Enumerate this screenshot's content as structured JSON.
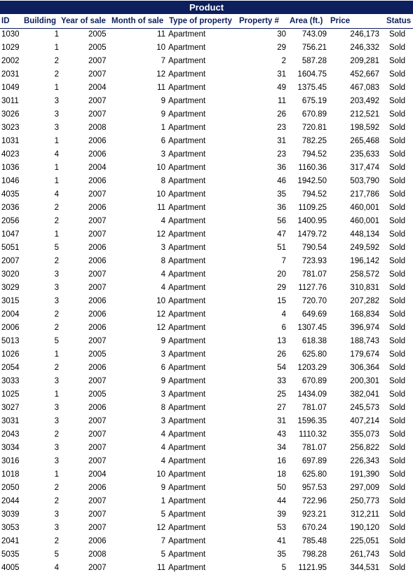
{
  "title": "Product",
  "headers": {
    "id": "ID",
    "building": "Building",
    "year": "Year of sale",
    "month": "Month of sale",
    "type": "Type of property",
    "property": "Property #",
    "area": "Area (ft.)",
    "price": "Price",
    "status": "Status"
  },
  "rows": [
    [
      "1030",
      "1",
      "2005",
      "11",
      "Apartment",
      "30",
      "743.09",
      "246,173",
      "Sold"
    ],
    [
      "1029",
      "1",
      "2005",
      "10",
      "Apartment",
      "29",
      "756.21",
      "246,332",
      "Sold"
    ],
    [
      "2002",
      "2",
      "2007",
      "7",
      "Apartment",
      "2",
      "587.28",
      "209,281",
      "Sold"
    ],
    [
      "2031",
      "2",
      "2007",
      "12",
      "Apartment",
      "31",
      "1604.75",
      "452,667",
      "Sold"
    ],
    [
      "1049",
      "1",
      "2004",
      "11",
      "Apartment",
      "49",
      "1375.45",
      "467,083",
      "Sold"
    ],
    [
      "3011",
      "3",
      "2007",
      "9",
      "Apartment",
      "11",
      "675.19",
      "203,492",
      "Sold"
    ],
    [
      "3026",
      "3",
      "2007",
      "9",
      "Apartment",
      "26",
      "670.89",
      "212,521",
      "Sold"
    ],
    [
      "3023",
      "3",
      "2008",
      "1",
      "Apartment",
      "23",
      "720.81",
      "198,592",
      "Sold"
    ],
    [
      "1031",
      "1",
      "2006",
      "6",
      "Apartment",
      "31",
      "782.25",
      "265,468",
      "Sold"
    ],
    [
      "4023",
      "4",
      "2006",
      "3",
      "Apartment",
      "23",
      "794.52",
      "235,633",
      "Sold"
    ],
    [
      "1036",
      "1",
      "2004",
      "10",
      "Apartment",
      "36",
      "1160.36",
      "317,474",
      "Sold"
    ],
    [
      "1046",
      "1",
      "2006",
      "8",
      "Apartment",
      "46",
      "1942.50",
      "503,790",
      "Sold"
    ],
    [
      "4035",
      "4",
      "2007",
      "10",
      "Apartment",
      "35",
      "794.52",
      "217,786",
      "Sold"
    ],
    [
      "2036",
      "2",
      "2006",
      "11",
      "Apartment",
      "36",
      "1109.25",
      "460,001",
      "Sold"
    ],
    [
      "2056",
      "2",
      "2007",
      "4",
      "Apartment",
      "56",
      "1400.95",
      "460,001",
      "Sold"
    ],
    [
      "1047",
      "1",
      "2007",
      "12",
      "Apartment",
      "47",
      "1479.72",
      "448,134",
      "Sold"
    ],
    [
      "5051",
      "5",
      "2006",
      "3",
      "Apartment",
      "51",
      "790.54",
      "249,592",
      "Sold"
    ],
    [
      "2007",
      "2",
      "2006",
      "8",
      "Apartment",
      "7",
      "723.93",
      "196,142",
      "Sold"
    ],
    [
      "3020",
      "3",
      "2007",
      "4",
      "Apartment",
      "20",
      "781.07",
      "258,572",
      "Sold"
    ],
    [
      "3029",
      "3",
      "2007",
      "4",
      "Apartment",
      "29",
      "1127.76",
      "310,831",
      "Sold"
    ],
    [
      "3015",
      "3",
      "2006",
      "10",
      "Apartment",
      "15",
      "720.70",
      "207,282",
      "Sold"
    ],
    [
      "2004",
      "2",
      "2006",
      "12",
      "Apartment",
      "4",
      "649.69",
      "168,834",
      "Sold"
    ],
    [
      "2006",
      "2",
      "2006",
      "12",
      "Apartment",
      "6",
      "1307.45",
      "396,974",
      "Sold"
    ],
    [
      "5013",
      "5",
      "2007",
      "9",
      "Apartment",
      "13",
      "618.38",
      "188,743",
      "Sold"
    ],
    [
      "1026",
      "1",
      "2005",
      "3",
      "Apartment",
      "26",
      "625.80",
      "179,674",
      "Sold"
    ],
    [
      "2054",
      "2",
      "2006",
      "6",
      "Apartment",
      "54",
      "1203.29",
      "306,364",
      "Sold"
    ],
    [
      "3033",
      "3",
      "2007",
      "9",
      "Apartment",
      "33",
      "670.89",
      "200,301",
      "Sold"
    ],
    [
      "1025",
      "1",
      "2005",
      "3",
      "Apartment",
      "25",
      "1434.09",
      "382,041",
      "Sold"
    ],
    [
      "3027",
      "3",
      "2006",
      "8",
      "Apartment",
      "27",
      "781.07",
      "245,573",
      "Sold"
    ],
    [
      "3031",
      "3",
      "2007",
      "3",
      "Apartment",
      "31",
      "1596.35",
      "407,214",
      "Sold"
    ],
    [
      "2043",
      "2",
      "2007",
      "4",
      "Apartment",
      "43",
      "1110.32",
      "355,073",
      "Sold"
    ],
    [
      "3034",
      "3",
      "2007",
      "4",
      "Apartment",
      "34",
      "781.07",
      "256,822",
      "Sold"
    ],
    [
      "3016",
      "3",
      "2007",
      "4",
      "Apartment",
      "16",
      "697.89",
      "226,343",
      "Sold"
    ],
    [
      "1018",
      "1",
      "2004",
      "10",
      "Apartment",
      "18",
      "625.80",
      "191,390",
      "Sold"
    ],
    [
      "2050",
      "2",
      "2006",
      "9",
      "Apartment",
      "50",
      "957.53",
      "297,009",
      "Sold"
    ],
    [
      "2044",
      "2",
      "2007",
      "1",
      "Apartment",
      "44",
      "722.96",
      "250,773",
      "Sold"
    ],
    [
      "3039",
      "3",
      "2007",
      "5",
      "Apartment",
      "39",
      "923.21",
      "312,211",
      "Sold"
    ],
    [
      "3053",
      "3",
      "2007",
      "12",
      "Apartment",
      "53",
      "670.24",
      "190,120",
      "Sold"
    ],
    [
      "2041",
      "2",
      "2006",
      "7",
      "Apartment",
      "41",
      "785.48",
      "225,051",
      "Sold"
    ],
    [
      "5035",
      "5",
      "2008",
      "5",
      "Apartment",
      "35",
      "798.28",
      "261,743",
      "Sold"
    ],
    [
      "4005",
      "4",
      "2007",
      "11",
      "Apartment",
      "5",
      "1121.95",
      "344,531",
      "Sold"
    ]
  ]
}
